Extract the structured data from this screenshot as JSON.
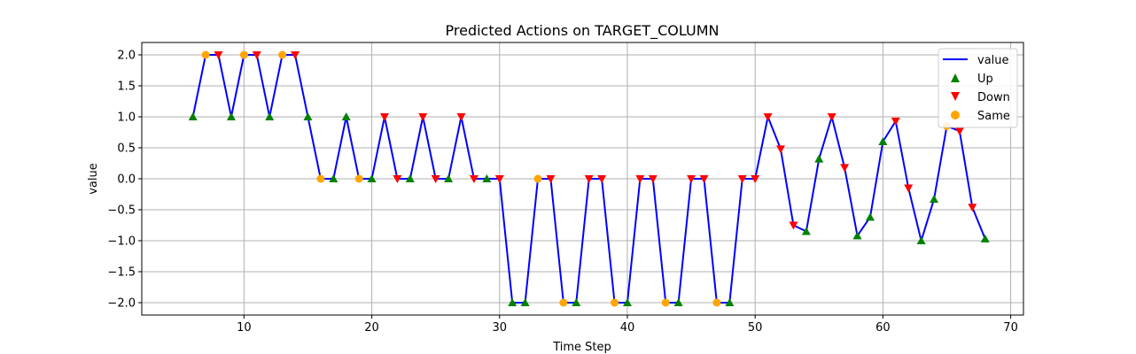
{
  "chart_data": {
    "type": "line",
    "title": "Predicted Actions on TARGET_COLUMN",
    "xlabel": "Time Step",
    "ylabel": "value",
    "xlim": [
      2,
      71
    ],
    "ylim": [
      -2.2,
      2.2
    ],
    "xticks": [
      10,
      20,
      30,
      40,
      50,
      60,
      70
    ],
    "yticks": [
      -2.0,
      -1.5,
      -1.0,
      -0.5,
      0.0,
      0.5,
      1.0,
      1.5,
      2.0
    ],
    "grid": true,
    "legend_position": "top-right",
    "colors": {
      "line": "#0000ff",
      "up": "#008000",
      "down": "#ff0000",
      "same": "#ffa500"
    },
    "series": [
      {
        "name": "value",
        "type": "line",
        "x": [
          6,
          7,
          8,
          9,
          10,
          11,
          12,
          13,
          14,
          15,
          16,
          17,
          18,
          19,
          20,
          21,
          22,
          23,
          24,
          25,
          26,
          27,
          28,
          29,
          30,
          31,
          32,
          33,
          34,
          35,
          36,
          37,
          38,
          39,
          40,
          41,
          42,
          43,
          44,
          45,
          46,
          47,
          48,
          49,
          50,
          51,
          52,
          53,
          54,
          55,
          56,
          57,
          58,
          59,
          60,
          61,
          62,
          63,
          64,
          65,
          66,
          67,
          68
        ],
        "y": [
          1,
          2,
          2,
          1,
          2,
          2,
          1,
          2,
          2,
          1,
          0,
          0,
          1,
          0,
          0,
          1,
          0,
          0,
          1,
          0,
          0,
          1,
          0,
          0,
          0,
          -2,
          -2,
          0,
          0,
          -2,
          -2,
          0,
          0,
          -2,
          -2,
          0,
          0,
          -2,
          -2,
          0,
          0,
          -2,
          -2,
          0,
          0,
          1,
          0.48,
          -0.75,
          -0.85,
          0.32,
          1,
          0.18,
          -0.92,
          -0.62,
          0.6,
          0.93,
          -0.15,
          -1,
          -0.33,
          0.85,
          0.77,
          -0.46,
          -0.97
        ]
      },
      {
        "name": "Up",
        "type": "scatter",
        "marker": "triangle-up",
        "x": [
          6,
          9,
          12,
          15,
          17,
          18,
          20,
          23,
          26,
          29,
          31,
          32,
          36,
          40,
          44,
          48,
          54,
          55,
          58,
          59,
          60,
          63,
          64,
          68
        ],
        "y": [
          1,
          1,
          1,
          1,
          0,
          1,
          0,
          0,
          0,
          0,
          -2,
          -2,
          -2,
          -2,
          -2,
          -2,
          -0.85,
          0.32,
          -0.92,
          -0.62,
          0.6,
          -1,
          -0.33,
          -0.97
        ]
      },
      {
        "name": "Down",
        "type": "scatter",
        "marker": "triangle-down",
        "x": [
          8,
          11,
          14,
          21,
          22,
          24,
          25,
          27,
          28,
          30,
          34,
          37,
          38,
          41,
          42,
          45,
          46,
          49,
          50,
          51,
          52,
          53,
          56,
          57,
          61,
          62,
          66,
          67
        ],
        "y": [
          2,
          2,
          2,
          1,
          0,
          1,
          0,
          1,
          0,
          0,
          0,
          0,
          0,
          0,
          0,
          0,
          0,
          0,
          0,
          1,
          0.48,
          -0.75,
          1,
          0.18,
          0.93,
          -0.15,
          0.77,
          -0.46
        ]
      },
      {
        "name": "Same",
        "type": "scatter",
        "marker": "circle",
        "x": [
          7,
          10,
          13,
          16,
          19,
          33,
          35,
          39,
          43,
          47,
          65
        ],
        "y": [
          2,
          2,
          2,
          0,
          0,
          0,
          -2,
          -2,
          -2,
          -2,
          0.85
        ]
      }
    ]
  }
}
